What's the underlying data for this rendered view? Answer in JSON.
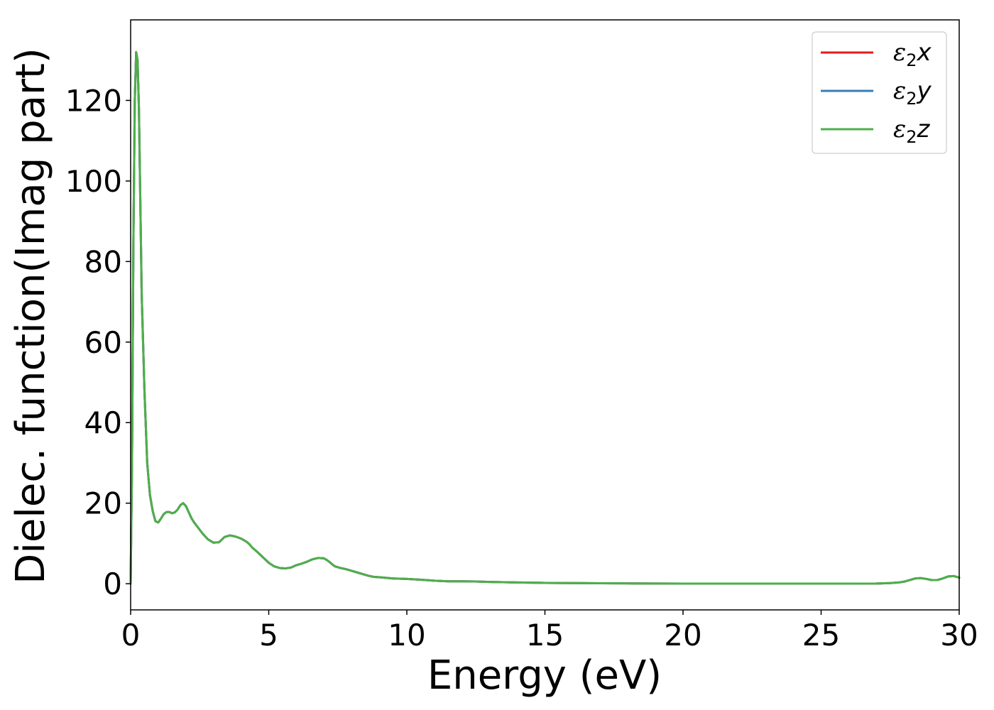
{
  "chart_data": {
    "type": "line",
    "xlabel": "Energy (eV)",
    "ylabel": "Dielec. function(Imag part)",
    "xlim": [
      0,
      30
    ],
    "ylim": [
      -6.5,
      140
    ],
    "x_ticks": [
      0,
      5,
      10,
      15,
      20,
      25,
      30
    ],
    "x_tick_labels": [
      "0",
      "5",
      "10",
      "15",
      "20",
      "25",
      "30"
    ],
    "y_ticks": [
      0,
      20,
      40,
      60,
      80,
      100,
      120
    ],
    "y_tick_labels": [
      "0",
      "20",
      "40",
      "60",
      "80",
      "100",
      "120"
    ],
    "grid": false,
    "legend_position": "top-right",
    "x": [
      0,
      0.05,
      0.1,
      0.15,
      0.2,
      0.25,
      0.3,
      0.35,
      0.4,
      0.5,
      0.6,
      0.7,
      0.8,
      0.9,
      1.0,
      1.1,
      1.2,
      1.3,
      1.4,
      1.5,
      1.6,
      1.7,
      1.8,
      1.9,
      2.0,
      2.1,
      2.2,
      2.3,
      2.4,
      2.5,
      2.6,
      2.8,
      3.0,
      3.2,
      3.4,
      3.6,
      3.8,
      4.0,
      4.1,
      4.2,
      4.3,
      4.4,
      4.6,
      4.8,
      5.0,
      5.2,
      5.4,
      5.6,
      5.8,
      6.0,
      6.2,
      6.4,
      6.6,
      6.8,
      7.0,
      7.1,
      7.2,
      7.3,
      7.4,
      7.6,
      7.8,
      8.0,
      8.2,
      8.4,
      8.6,
      8.8,
      9.0,
      9.5,
      10.0,
      10.5,
      11.0,
      11.5,
      12.0,
      12.5,
      13.0,
      14.0,
      15.0,
      16.0,
      17.0,
      18.0,
      19.0,
      20.0,
      21.0,
      22.0,
      23.0,
      24.0,
      25.0,
      26.0,
      27.0,
      27.5,
      27.8,
      28.0,
      28.2,
      28.4,
      28.6,
      28.8,
      29.0,
      29.2,
      29.4,
      29.6,
      29.8,
      30.0
    ],
    "series": [
      {
        "name": "ε2x",
        "label_base": "ε",
        "label_sub": "2",
        "label_axis": "x",
        "color": "#e41a1c",
        "values": [
          0,
          30,
          85,
          120,
          132,
          130,
          118,
          95,
          72,
          48,
          30,
          22,
          18,
          15.5,
          15.2,
          16.2,
          17.3,
          17.8,
          17.8,
          17.5,
          17.7,
          18.4,
          19.5,
          20,
          19.3,
          17.8,
          16.3,
          15.2,
          14.3,
          13.4,
          12.5,
          11.0,
          10.2,
          10.3,
          11.6,
          12.0,
          11.7,
          11.2,
          10.8,
          10.4,
          9.8,
          9.0,
          7.8,
          6.5,
          5.2,
          4.3,
          3.9,
          3.8,
          4.0,
          4.6,
          5.0,
          5.5,
          6.1,
          6.4,
          6.3,
          5.9,
          5.4,
          4.8,
          4.3,
          3.9,
          3.6,
          3.2,
          2.8,
          2.4,
          2.0,
          1.7,
          1.6,
          1.3,
          1.2,
          1.0,
          0.75,
          0.6,
          0.6,
          0.55,
          0.45,
          0.3,
          0.2,
          0.15,
          0.1,
          0.08,
          0.05,
          0.03,
          0.02,
          0.02,
          0.02,
          0.02,
          0.02,
          0.02,
          0.05,
          0.15,
          0.3,
          0.5,
          0.9,
          1.3,
          1.4,
          1.2,
          0.9,
          0.9,
          1.3,
          1.8,
          1.9,
          1.5
        ]
      },
      {
        "name": "ε2y",
        "label_base": "ε",
        "label_sub": "2",
        "label_axis": "y",
        "color": "#377eb8",
        "values": [
          0,
          30,
          85,
          120,
          132,
          130,
          118,
          95,
          72,
          48,
          30,
          22,
          18,
          15.5,
          15.2,
          16.2,
          17.3,
          17.8,
          17.8,
          17.5,
          17.7,
          18.4,
          19.5,
          20,
          19.3,
          17.8,
          16.3,
          15.2,
          14.3,
          13.4,
          12.5,
          11.0,
          10.2,
          10.3,
          11.6,
          12.0,
          11.7,
          11.2,
          10.8,
          10.4,
          9.8,
          9.0,
          7.8,
          6.5,
          5.2,
          4.3,
          3.9,
          3.8,
          4.0,
          4.6,
          5.0,
          5.5,
          6.1,
          6.4,
          6.3,
          5.9,
          5.4,
          4.8,
          4.3,
          3.9,
          3.6,
          3.2,
          2.8,
          2.4,
          2.0,
          1.7,
          1.6,
          1.3,
          1.2,
          1.0,
          0.75,
          0.6,
          0.6,
          0.55,
          0.45,
          0.3,
          0.2,
          0.15,
          0.1,
          0.08,
          0.05,
          0.03,
          0.02,
          0.02,
          0.02,
          0.02,
          0.02,
          0.02,
          0.05,
          0.15,
          0.3,
          0.5,
          0.9,
          1.3,
          1.4,
          1.2,
          0.9,
          0.9,
          1.3,
          1.8,
          1.9,
          1.5
        ]
      },
      {
        "name": "ε2z",
        "label_base": "ε",
        "label_sub": "2",
        "label_axis": "z",
        "color": "#4daf4a",
        "values": [
          0,
          30,
          85,
          120,
          132,
          130,
          118,
          95,
          72,
          48,
          30,
          22,
          18,
          15.5,
          15.2,
          16.2,
          17.3,
          17.8,
          17.8,
          17.5,
          17.7,
          18.4,
          19.5,
          20,
          19.3,
          17.8,
          16.3,
          15.2,
          14.3,
          13.4,
          12.5,
          11.0,
          10.2,
          10.3,
          11.6,
          12.0,
          11.7,
          11.2,
          10.8,
          10.4,
          9.8,
          9.0,
          7.8,
          6.5,
          5.2,
          4.3,
          3.9,
          3.8,
          4.0,
          4.6,
          5.0,
          5.5,
          6.1,
          6.4,
          6.3,
          5.9,
          5.4,
          4.8,
          4.3,
          3.9,
          3.6,
          3.2,
          2.8,
          2.4,
          2.0,
          1.7,
          1.6,
          1.3,
          1.2,
          1.0,
          0.75,
          0.6,
          0.6,
          0.55,
          0.45,
          0.3,
          0.2,
          0.15,
          0.1,
          0.08,
          0.05,
          0.03,
          0.02,
          0.02,
          0.02,
          0.02,
          0.02,
          0.02,
          0.05,
          0.15,
          0.3,
          0.5,
          0.9,
          1.3,
          1.4,
          1.2,
          0.9,
          0.9,
          1.3,
          1.8,
          1.9,
          1.5
        ]
      }
    ]
  }
}
